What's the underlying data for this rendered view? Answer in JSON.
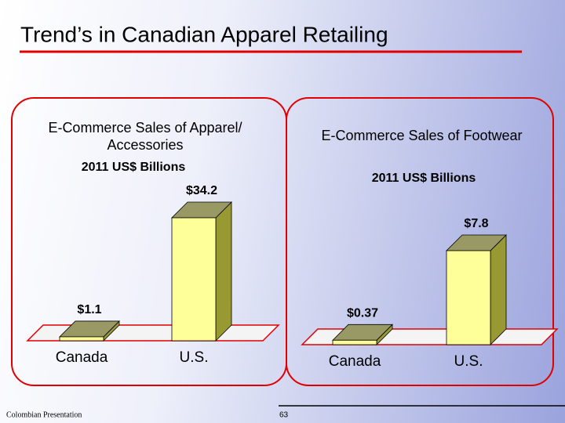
{
  "slide": {
    "title": "Trend’s in Canadian Apparel Retailing",
    "footer": "Colombian Presentation",
    "page": "63"
  },
  "chart_data": [
    {
      "type": "bar",
      "title": "E-Commerce Sales of Apparel/ Accessories",
      "subtitle": "2011 US$ Billions",
      "categories": [
        "Canada",
        "U.S."
      ],
      "values": [
        1.1,
        34.2
      ],
      "value_labels": [
        "$1.1",
        "$34.2"
      ],
      "color": "#ffff99"
    },
    {
      "type": "bar",
      "title": "E-Commerce Sales of Footwear",
      "subtitle": "2011 US$ Billions",
      "categories": [
        "Canada",
        "U.S."
      ],
      "values": [
        0.37,
        7.8
      ],
      "value_labels": [
        "$0.37",
        "$7.8"
      ],
      "color": "#ffff99"
    }
  ]
}
